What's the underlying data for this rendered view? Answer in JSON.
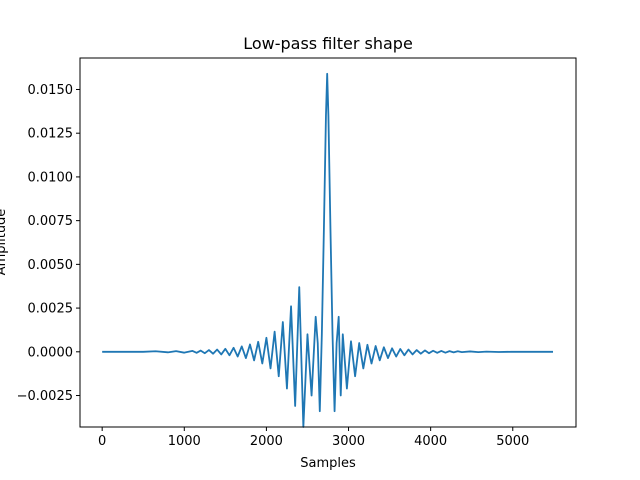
{
  "chart_data": {
    "type": "line",
    "title": "Low-pass filter shape",
    "xlabel": "Samples",
    "ylabel": "Amplitude",
    "xlim": [
      -270,
      5770
    ],
    "ylim": [
      -0.0043,
      0.0168
    ],
    "xticks": [
      0,
      1000,
      2000,
      3000,
      4000,
      5000
    ],
    "xtick_labels": [
      "0",
      "1000",
      "2000",
      "3000",
      "4000",
      "5000"
    ],
    "yticks": [
      -0.0025,
      0.0,
      0.0025,
      0.005,
      0.0075,
      0.01,
      0.0125,
      0.015
    ],
    "ytick_labels": [
      "−0.0025",
      "0.0000",
      "0.0025",
      "0.0050",
      "0.0075",
      "0.0100",
      "0.0125",
      "0.0150"
    ],
    "grid": false,
    "legend": "none",
    "series": [
      {
        "color": "#1f77b4",
        "x": [
          0,
          500,
          650,
          800,
          900,
          1000,
          1100,
          1150,
          1200,
          1250,
          1300,
          1350,
          1400,
          1450,
          1500,
          1550,
          1600,
          1650,
          1700,
          1750,
          1800,
          1850,
          1900,
          1950,
          2000,
          2050,
          2100,
          2150,
          2200,
          2250,
          2300,
          2350,
          2400,
          2450,
          2500,
          2550,
          2600,
          2625,
          2650,
          2675,
          2700,
          2725,
          2740,
          2755,
          2780,
          2805,
          2830,
          2855,
          2880,
          2905,
          2930,
          2980,
          3030,
          3080,
          3130,
          3180,
          3230,
          3280,
          3330,
          3380,
          3430,
          3480,
          3530,
          3580,
          3630,
          3680,
          3730,
          3780,
          3830,
          3880,
          3930,
          3980,
          4030,
          4080,
          4130,
          4180,
          4230,
          4280,
          4330,
          4380,
          4480,
          4580,
          4680,
          4830,
          4980,
          5200,
          5490
        ],
        "y": [
          0.0,
          0.0,
          3e-05,
          -3e-05,
          4e-05,
          -5e-05,
          5e-05,
          -6e-05,
          7e-05,
          -8e-05,
          0.0001,
          -0.00011,
          0.00013,
          -0.00015,
          0.00017,
          -0.0002,
          0.00023,
          -0.00027,
          0.00031,
          -0.00036,
          0.00042,
          -0.00049,
          0.00057,
          -0.00067,
          0.0008,
          -0.00095,
          0.00115,
          -0.0014,
          0.0017,
          -0.0021,
          0.0026,
          -0.0031,
          0.0037,
          -0.0043,
          0.001,
          -0.0025,
          0.002,
          0.0005,
          -0.0034,
          0.001,
          0.007,
          0.0135,
          0.0159,
          0.0135,
          0.007,
          0.001,
          -0.0034,
          0.0005,
          0.002,
          -0.0025,
          0.001,
          -0.0021,
          0.0006,
          -0.0014,
          0.0005,
          -0.00095,
          0.0004,
          -0.00067,
          0.00033,
          -0.00049,
          0.00026,
          -0.00036,
          0.0002,
          -0.00027,
          0.00016,
          -0.0002,
          0.00013,
          -0.00015,
          0.0001,
          -0.00011,
          8e-05,
          -8e-05,
          6e-05,
          -6e-05,
          5e-05,
          -5e-05,
          4e-05,
          -3e-05,
          3e-05,
          -2e-05,
          2e-05,
          -2e-05,
          1e-05,
          -1e-05,
          0.0,
          0.0,
          0.0
        ]
      }
    ]
  }
}
